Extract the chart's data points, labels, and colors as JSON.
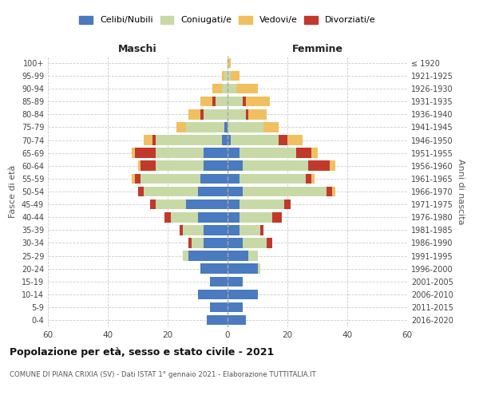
{
  "age_groups": [
    "0-4",
    "5-9",
    "10-14",
    "15-19",
    "20-24",
    "25-29",
    "30-34",
    "35-39",
    "40-44",
    "45-49",
    "50-54",
    "55-59",
    "60-64",
    "65-69",
    "70-74",
    "75-79",
    "80-84",
    "85-89",
    "90-94",
    "95-99",
    "100+"
  ],
  "birth_years": [
    "2016-2020",
    "2011-2015",
    "2006-2010",
    "2001-2005",
    "1996-2000",
    "1991-1995",
    "1986-1990",
    "1981-1985",
    "1976-1980",
    "1971-1975",
    "1966-1970",
    "1961-1965",
    "1956-1960",
    "1951-1955",
    "1946-1950",
    "1941-1945",
    "1936-1940",
    "1931-1935",
    "1926-1930",
    "1921-1925",
    "≤ 1920"
  ],
  "colors": {
    "celibi": "#4a7abf",
    "coniugati": "#c8d9a8",
    "vedovi": "#f0c060",
    "divorziati": "#c0392b"
  },
  "males": {
    "celibi": [
      7,
      6,
      10,
      6,
      9,
      13,
      8,
      8,
      10,
      14,
      10,
      9,
      8,
      8,
      2,
      1,
      0,
      0,
      0,
      0,
      0
    ],
    "coniugati": [
      0,
      0,
      0,
      0,
      0,
      2,
      4,
      7,
      9,
      10,
      18,
      20,
      16,
      16,
      22,
      13,
      8,
      4,
      2,
      1,
      0
    ],
    "vedovi": [
      0,
      0,
      0,
      0,
      0,
      0,
      0,
      0,
      0,
      0,
      0,
      1,
      1,
      1,
      3,
      3,
      4,
      4,
      3,
      1,
      0
    ],
    "divorziati": [
      0,
      0,
      0,
      0,
      0,
      0,
      1,
      1,
      2,
      2,
      2,
      2,
      5,
      7,
      1,
      0,
      1,
      1,
      0,
      0,
      0
    ]
  },
  "females": {
    "nubili": [
      6,
      5,
      10,
      5,
      10,
      7,
      5,
      4,
      4,
      4,
      5,
      4,
      5,
      4,
      1,
      0,
      0,
      0,
      0,
      0,
      0
    ],
    "coniugate": [
      0,
      0,
      0,
      0,
      1,
      3,
      8,
      7,
      11,
      15,
      28,
      22,
      22,
      19,
      16,
      12,
      6,
      5,
      3,
      1,
      0
    ],
    "vedove": [
      0,
      0,
      0,
      0,
      0,
      0,
      0,
      0,
      0,
      0,
      1,
      1,
      2,
      2,
      5,
      5,
      6,
      8,
      7,
      3,
      1
    ],
    "divorziate": [
      0,
      0,
      0,
      0,
      0,
      0,
      2,
      1,
      3,
      2,
      2,
      2,
      7,
      5,
      3,
      0,
      1,
      1,
      0,
      0,
      0
    ]
  },
  "xlim": 60,
  "title": "Popolazione per età, sesso e stato civile - 2021",
  "subtitle": "COMUNE DI PIANA CRIXIA (SV) - Dati ISTAT 1° gennaio 2021 - Elaborazione TUTTITALIA.IT",
  "xlabel_left": "Maschi",
  "xlabel_right": "Femmine",
  "ylabel_left": "Fasce di età",
  "ylabel_right": "Anni di nascita",
  "legend_labels": [
    "Celibi/Nubili",
    "Coniugati/e",
    "Vedovi/e",
    "Divorziati/e"
  ],
  "background": "#ffffff",
  "grid_color": "#cccccc"
}
